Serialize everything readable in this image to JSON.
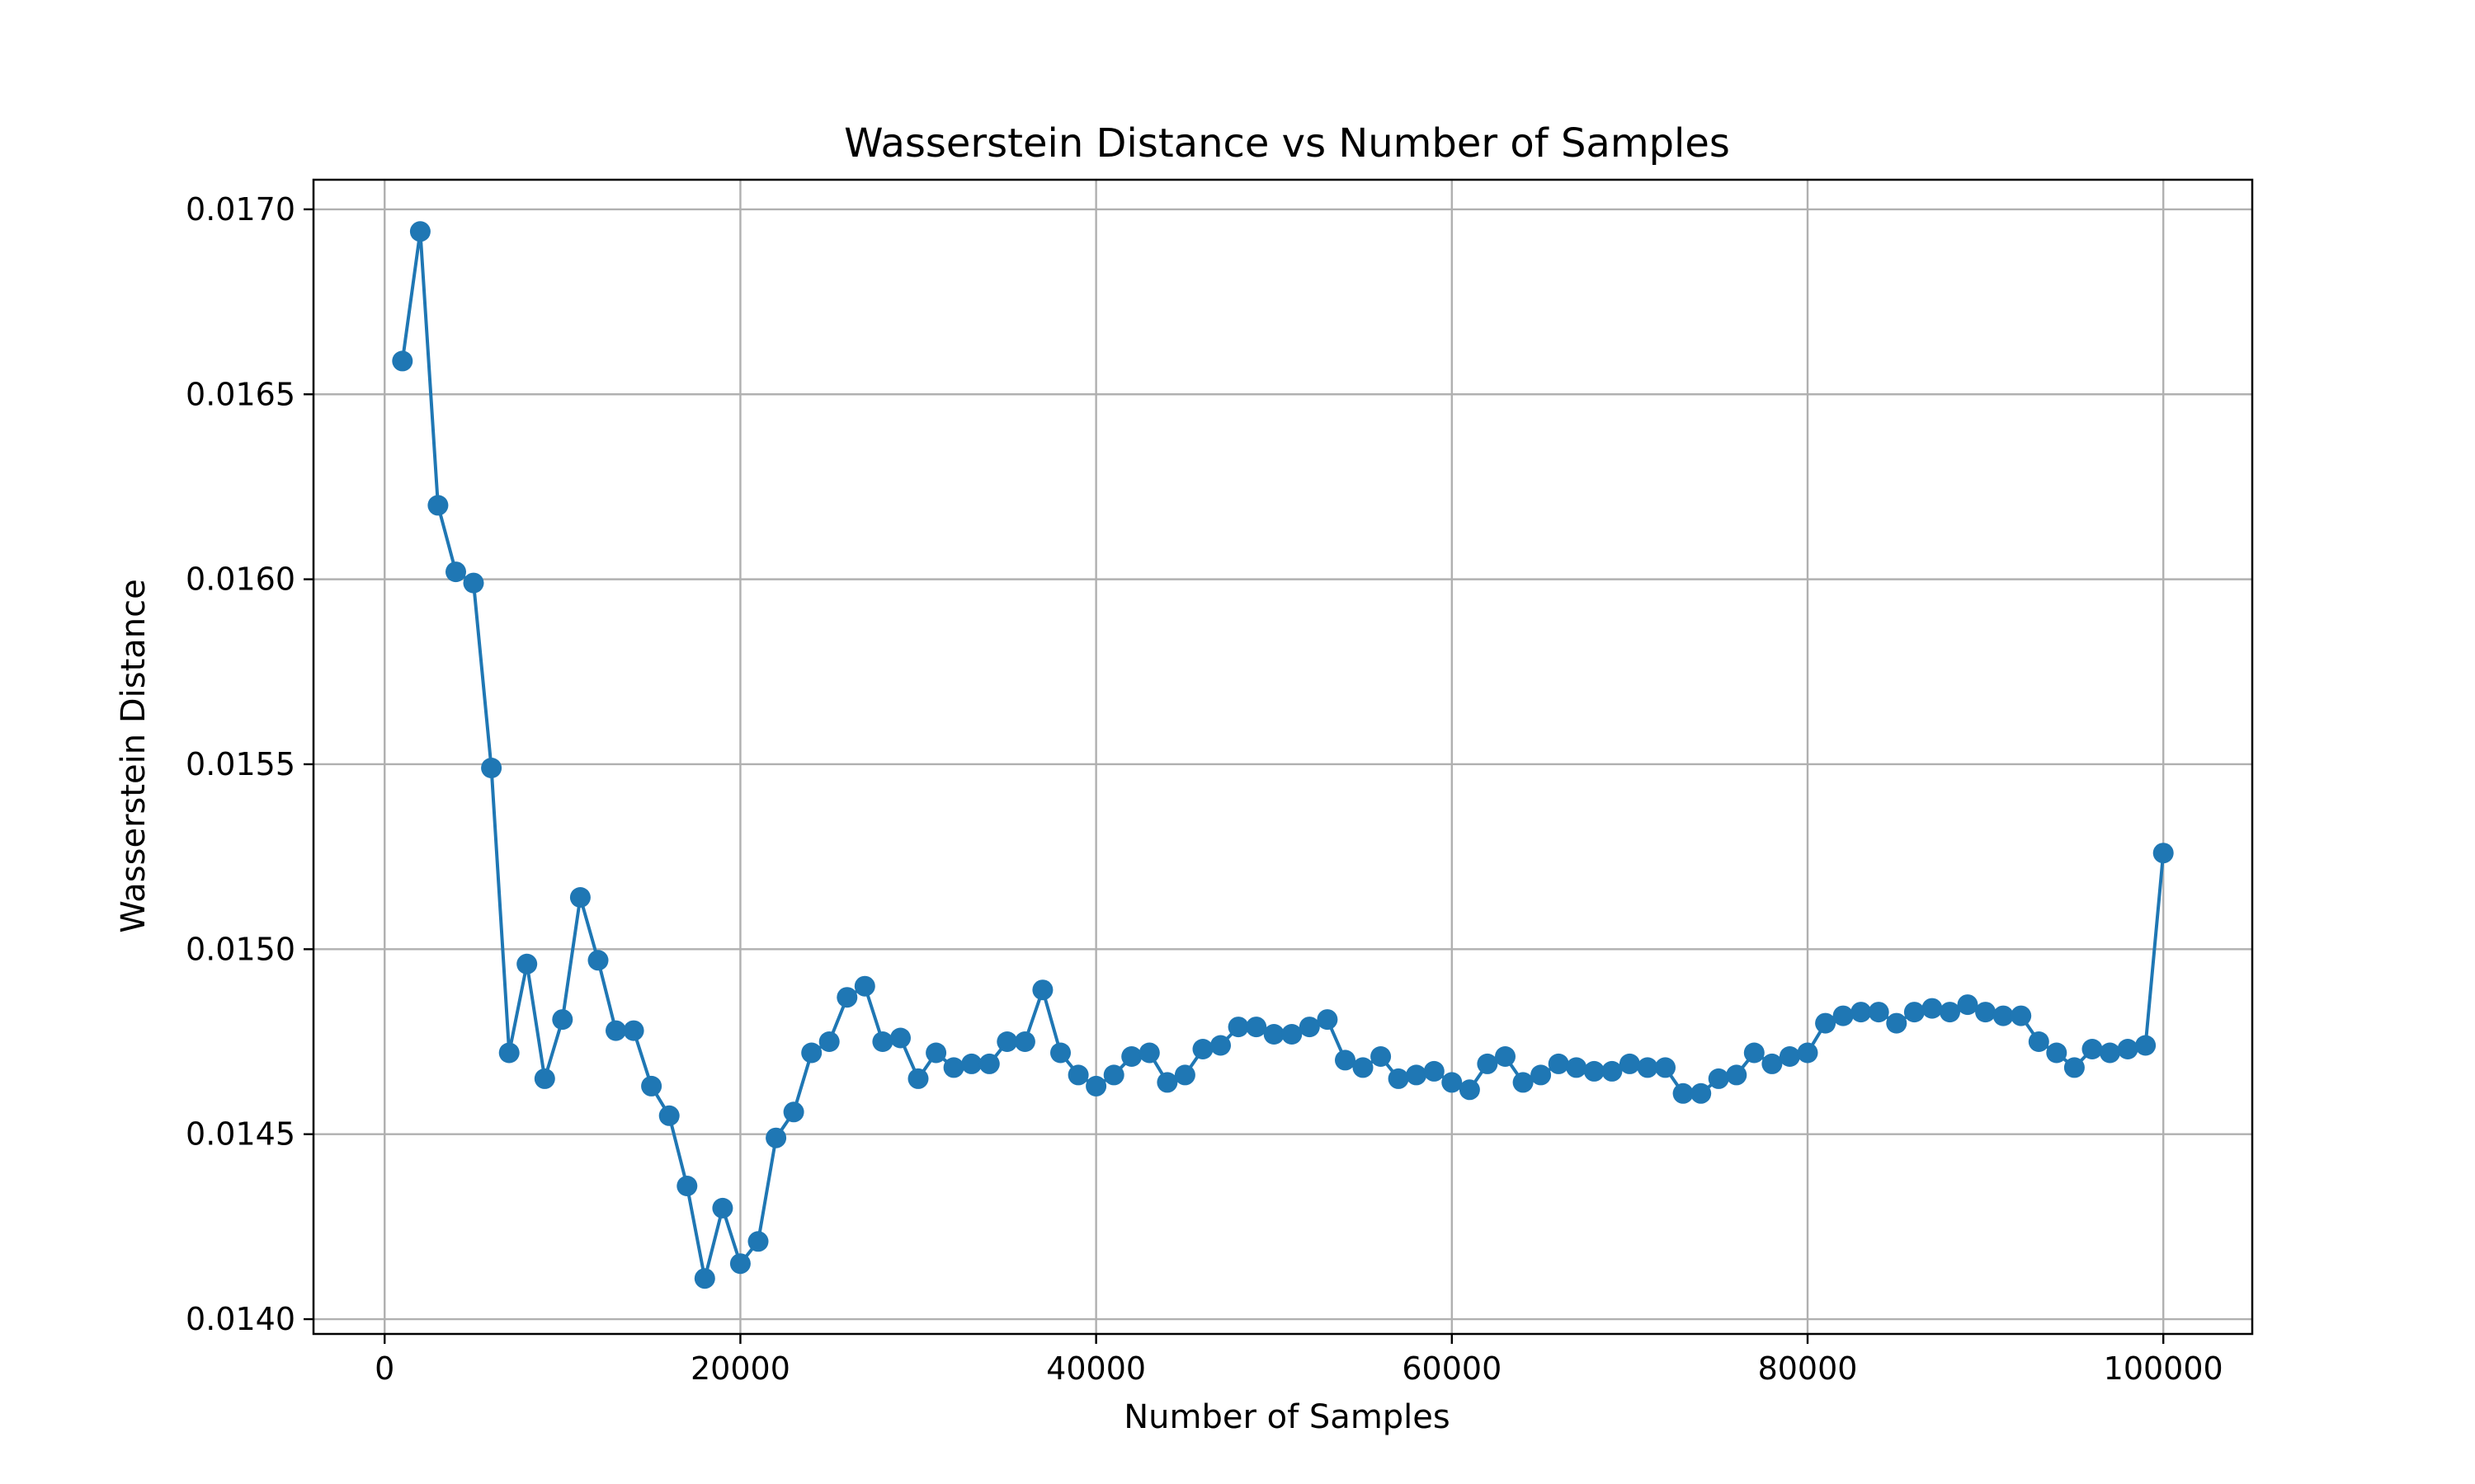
{
  "chart_data": {
    "type": "line",
    "title": "Wasserstein Distance vs Number of Samples",
    "xlabel": "Number of Samples",
    "ylabel": "Wasserstein Distance",
    "xlim": [
      -4000,
      105000
    ],
    "ylim": [
      0.01396,
      0.01708
    ],
    "x_ticks": [
      0,
      20000,
      40000,
      60000,
      80000,
      100000
    ],
    "x_tick_labels": [
      "0",
      "20000",
      "40000",
      "60000",
      "80000",
      "100000"
    ],
    "y_ticks": [
      0.014,
      0.0145,
      0.015,
      0.0155,
      0.016,
      0.0165,
      0.017
    ],
    "y_tick_labels": [
      "0.0140",
      "0.0145",
      "0.0150",
      "0.0155",
      "0.0160",
      "0.0165",
      "0.0170"
    ],
    "grid": true,
    "color": "#1f77b4",
    "markers": true,
    "series": [
      {
        "x": [
          1000,
          2000,
          3000,
          4000,
          5000,
          6000,
          7000,
          8000,
          9000,
          10000,
          11000,
          12000,
          13000,
          14000,
          15000,
          16000,
          17000,
          18000,
          19000,
          20000,
          21000,
          22000,
          23000,
          24000,
          25000,
          26000,
          27000,
          28000,
          29000,
          30000,
          31000,
          32000,
          33000,
          34000,
          35000,
          36000,
          37000,
          38000,
          39000,
          40000,
          41000,
          42000,
          43000,
          44000,
          45000,
          46000,
          47000,
          48000,
          49000,
          50000,
          51000,
          52000,
          53000,
          54000,
          55000,
          56000,
          57000,
          58000,
          59000,
          60000,
          61000,
          62000,
          63000,
          64000,
          65000,
          66000,
          67000,
          68000,
          69000,
          70000,
          71000,
          72000,
          73000,
          74000,
          75000,
          76000,
          77000,
          78000,
          79000,
          80000,
          81000,
          82000,
          83000,
          84000,
          85000,
          86000,
          87000,
          88000,
          89000,
          90000,
          91000,
          92000,
          93000,
          94000,
          95000,
          96000,
          97000,
          98000,
          99000,
          100000
        ],
        "values": [
          0.01659,
          0.01694,
          0.0162,
          0.01602,
          0.01599,
          0.01549,
          0.01472,
          0.01496,
          0.01465,
          0.01481,
          0.01514,
          0.01497,
          0.01478,
          0.01478,
          0.01463,
          0.01455,
          0.01436,
          0.01411,
          0.0143,
          0.01415,
          0.01421,
          0.01449,
          0.01456,
          0.01472,
          0.01475,
          0.01487,
          0.0149,
          0.01475,
          0.01476,
          0.01465,
          0.01472,
          0.01468,
          0.01469,
          0.01469,
          0.01475,
          0.01475,
          0.01489,
          0.01472,
          0.01466,
          0.01463,
          0.01466,
          0.01471,
          0.01472,
          0.01464,
          0.01466,
          0.01473,
          0.01474,
          0.01479,
          0.01479,
          0.01477,
          0.01477,
          0.01479,
          0.01481,
          0.0147,
          0.01468,
          0.01471,
          0.01465,
          0.01466,
          0.01467,
          0.01464,
          0.01462,
          0.01469,
          0.01471,
          0.01464,
          0.01466,
          0.01469,
          0.01468,
          0.01467,
          0.01467,
          0.01469,
          0.01468,
          0.01468,
          0.01461,
          0.01461,
          0.01465,
          0.01466,
          0.01472,
          0.01469,
          0.01471,
          0.01472,
          0.0148,
          0.01482,
          0.01483,
          0.01483,
          0.0148,
          0.01483,
          0.01484,
          0.01483,
          0.01485,
          0.01483,
          0.01482,
          0.01482,
          0.01475,
          0.01472,
          0.01468,
          0.01473,
          0.01472,
          0.01473,
          0.01474,
          0.01526
        ]
      }
    ]
  }
}
